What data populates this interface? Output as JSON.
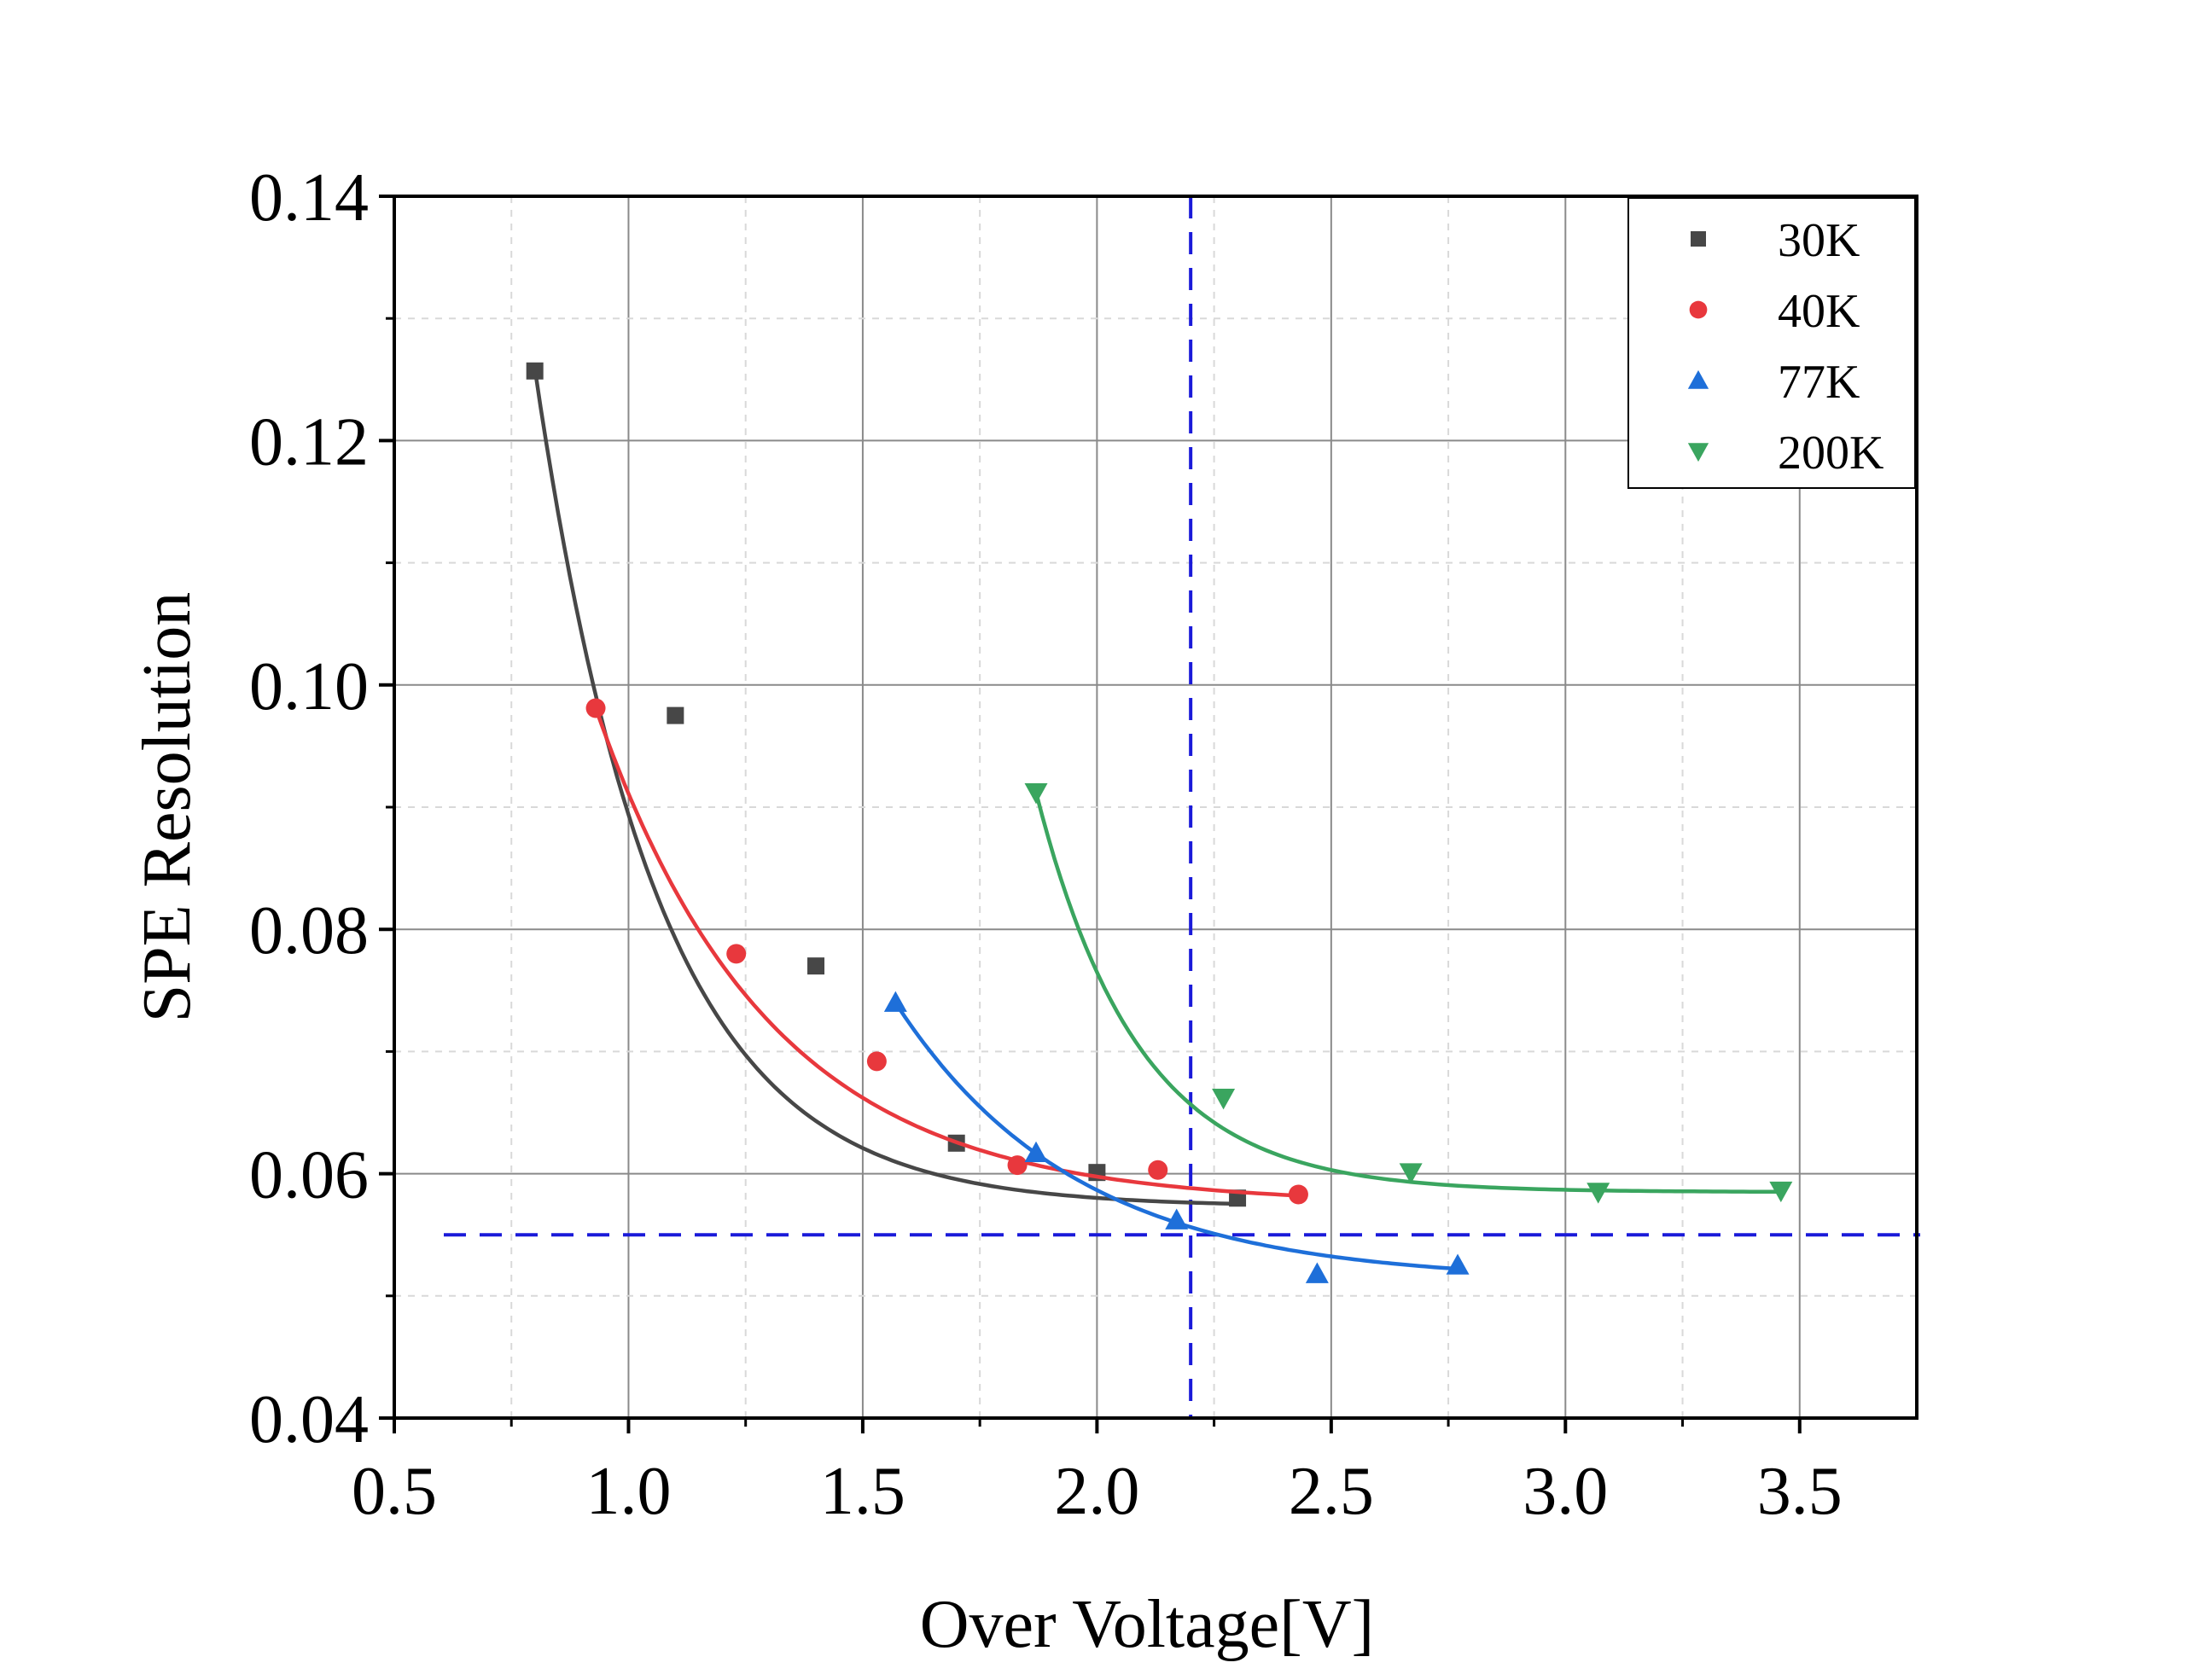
{
  "chart_data": {
    "type": "scatter",
    "title": "",
    "xlabel": "Over Voltage[V]",
    "ylabel": "SPE Resolution",
    "xlim": [
      0.5,
      3.75
    ],
    "ylim": [
      0.04,
      0.14
    ],
    "x_ticks": [
      0.5,
      1.0,
      1.5,
      2.0,
      2.5,
      3.0,
      3.5
    ],
    "x_tick_labels": [
      "0.5",
      "1.0",
      "1.5",
      "2.0",
      "2.5",
      "3.0",
      "3.5"
    ],
    "x_minor_ticks": [
      0.75,
      1.25,
      1.75,
      2.25,
      2.75,
      3.25
    ],
    "y_ticks": [
      0.04,
      0.06,
      0.08,
      0.1,
      0.12,
      0.14
    ],
    "y_tick_labels": [
      "0.04",
      "0.06",
      "0.08",
      "0.10",
      "0.12",
      "0.14"
    ],
    "y_minor_ticks": [
      0.05,
      0.07,
      0.09,
      0.11,
      0.13
    ],
    "grid": true,
    "legend_position": "top-right",
    "reference_lines": [
      {
        "orientation": "vertical",
        "value": 2.2,
        "color": "#1a1ad9",
        "style": "dashed"
      },
      {
        "orientation": "horizontal",
        "value": 0.055,
        "color": "#1a1ad9",
        "style": "dashed"
      }
    ],
    "series": [
      {
        "name": "30K",
        "marker": "square",
        "color": "#474747",
        "x": [
          0.8,
          1.1,
          1.4,
          1.7,
          2.0,
          2.3
        ],
        "y": [
          0.1257,
          0.0975,
          0.077,
          0.0625,
          0.0601,
          0.058
        ],
        "fit": {
          "a": 0.0573,
          "b": 0.0686,
          "c": 3.8,
          "x0": 0.8
        }
      },
      {
        "name": "40K",
        "marker": "circle",
        "color": "#e8383d",
        "x": [
          0.93,
          1.23,
          1.53,
          1.83,
          2.13,
          2.43
        ],
        "y": [
          0.0981,
          0.078,
          0.0692,
          0.0607,
          0.0603,
          0.0583
        ],
        "fit": {
          "a": 0.0575,
          "b": 0.0406,
          "c": 2.7,
          "x0": 0.93
        }
      },
      {
        "name": "77K",
        "marker": "triangle-up",
        "color": "#1e6fd9",
        "x": [
          1.57,
          1.87,
          2.17,
          2.47,
          2.77
        ],
        "y": [
          0.074,
          0.0617,
          0.0562,
          0.0518,
          0.0525
        ],
        "fit": {
          "a": 0.0512,
          "b": 0.0228,
          "c": 2.6,
          "x0": 1.57
        }
      },
      {
        "name": "200K",
        "marker": "triangle-down",
        "color": "#3aa55f",
        "x": [
          1.87,
          2.27,
          2.67,
          3.07,
          3.46
        ],
        "y": [
          0.0912,
          0.0662,
          0.0601,
          0.0585,
          0.0586
        ],
        "fit": {
          "a": 0.0585,
          "b": 0.0327,
          "c": 4.6,
          "x0": 1.87
        }
      }
    ]
  }
}
